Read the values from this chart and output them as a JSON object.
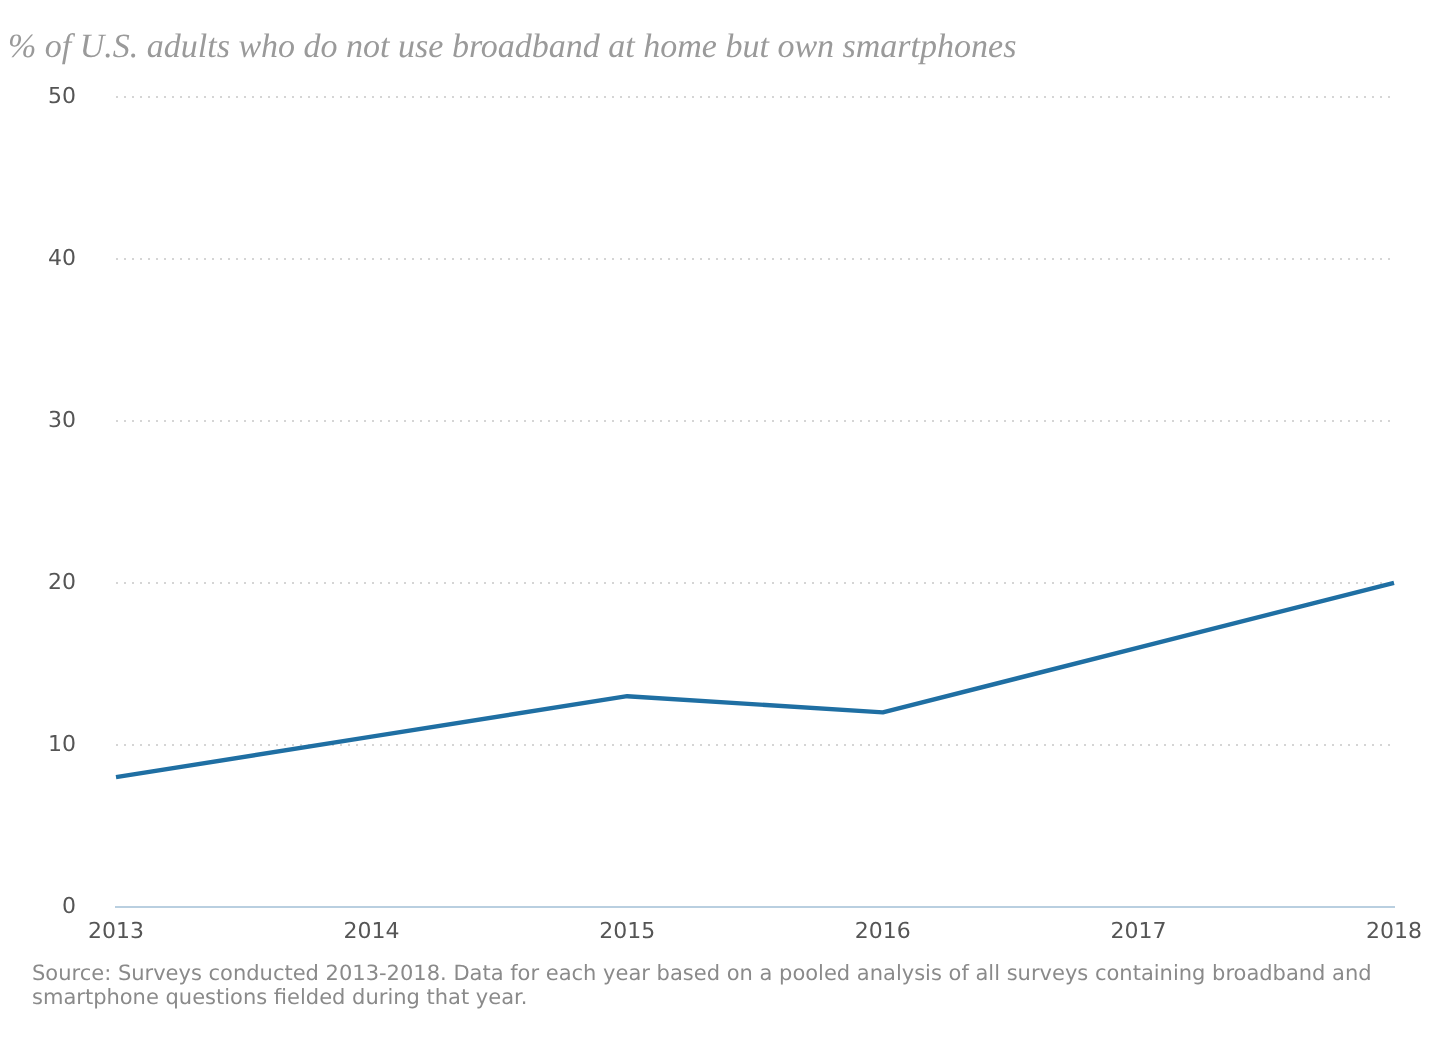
{
  "chart_data": {
    "type": "line",
    "title": "% of U.S. adults who do not use broadband at home but own smartphones",
    "categories": [
      "2013",
      "2014",
      "2015",
      "2016",
      "2017",
      "2018"
    ],
    "series": [
      {
        "color": "#1f6fa3",
        "values": [
          8,
          10.5,
          13,
          12,
          16,
          20
        ]
      }
    ],
    "ylim": [
      0,
      50
    ],
    "yticks": [
      0,
      10,
      20,
      30,
      40,
      50
    ],
    "grid": "y",
    "legend": false,
    "marker": "none",
    "line_style": "solid",
    "annotations": [
      "Source: Surveys conducted 2013-2018. Data for each year based on a pooled analysis of all surveys containing broadband and smartphone questions fielded during that year."
    ]
  }
}
